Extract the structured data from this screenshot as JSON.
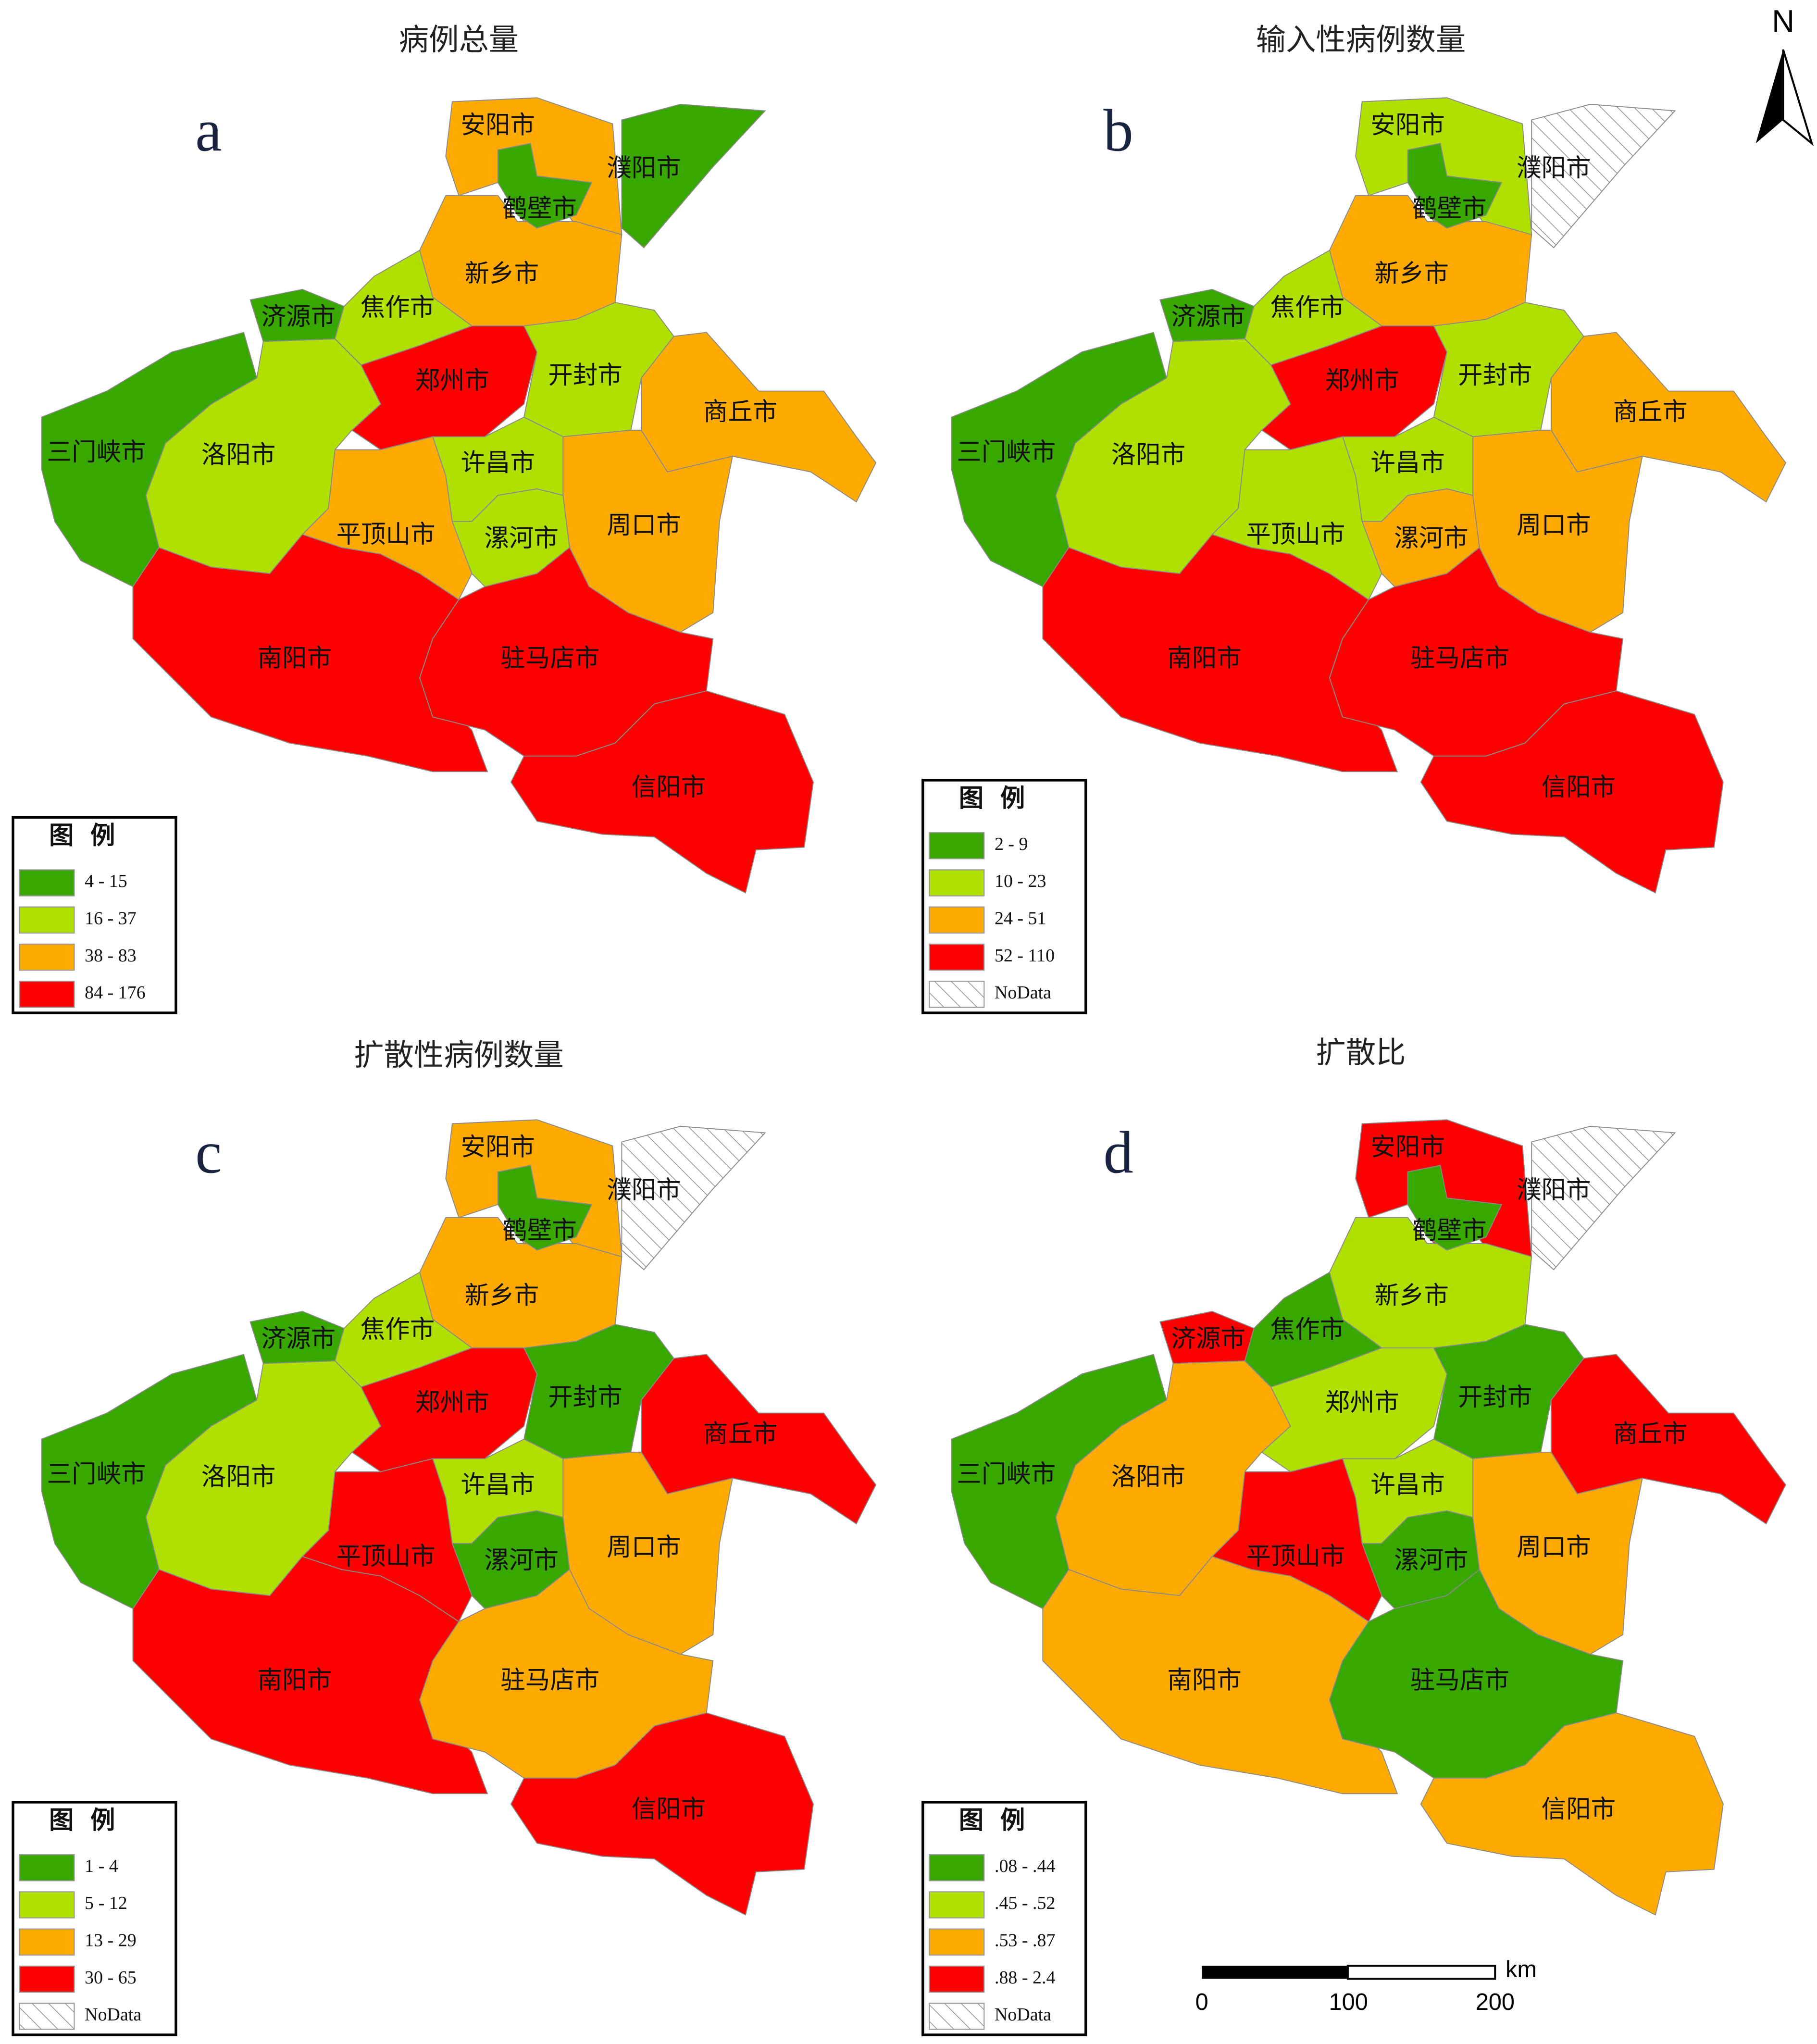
{
  "maps": [
    {
      "title": "病例总量",
      "letter": "a",
      "legend": {
        "title": "图 例",
        "items": [
          {
            "label": "4 - 15",
            "color": "#38a800"
          },
          {
            "label": "16 - 37",
            "color": "#b0e000"
          },
          {
            "label": "38 - 83",
            "color": "#ffaa00"
          },
          {
            "label": "84 - 176",
            "color": "#ff0000"
          }
        ]
      },
      "regions": [
        {
          "name": "安阳市",
          "color": "#ffaa00"
        },
        {
          "name": "濮阳市",
          "color": "#38a800"
        },
        {
          "name": "鹤壁市",
          "color": "#38a800"
        },
        {
          "name": "新乡市",
          "color": "#ffaa00"
        },
        {
          "name": "济源市",
          "color": "#38a800"
        },
        {
          "name": "焦作市",
          "color": "#b0e000"
        },
        {
          "name": "郑州市",
          "color": "#ff0000"
        },
        {
          "name": "开封市",
          "color": "#b0e000"
        },
        {
          "name": "商丘市",
          "color": "#ffaa00"
        },
        {
          "name": "三门峡市",
          "color": "#38a800"
        },
        {
          "name": "洛阳市",
          "color": "#b0e000"
        },
        {
          "name": "许昌市",
          "color": "#b0e000"
        },
        {
          "name": "平顶山市",
          "color": "#ffaa00"
        },
        {
          "name": "漯河市",
          "color": "#b0e000"
        },
        {
          "name": "周口市",
          "color": "#ffaa00"
        },
        {
          "name": "南阳市",
          "color": "#ff0000"
        },
        {
          "name": "驻马店市",
          "color": "#ff0000"
        },
        {
          "name": "信阳市",
          "color": "#ff0000"
        }
      ]
    },
    {
      "title": "输入性病例数量",
      "letter": "b",
      "legend": {
        "title": "图 例",
        "items": [
          {
            "label": "2 - 9",
            "color": "#38a800"
          },
          {
            "label": "10 - 23",
            "color": "#b0e000"
          },
          {
            "label": "24 - 51",
            "color": "#ffaa00"
          },
          {
            "label": "52 - 110",
            "color": "#ff0000"
          },
          {
            "label": "NoData",
            "color": "none"
          }
        ]
      },
      "regions": [
        {
          "name": "安阳市",
          "color": "#b0e000"
        },
        {
          "name": "濮阳市",
          "color": "none"
        },
        {
          "name": "鹤壁市",
          "color": "#38a800"
        },
        {
          "name": "新乡市",
          "color": "#ffaa00"
        },
        {
          "name": "济源市",
          "color": "#38a800"
        },
        {
          "name": "焦作市",
          "color": "#b0e000"
        },
        {
          "name": "郑州市",
          "color": "#ff0000"
        },
        {
          "name": "开封市",
          "color": "#b0e000"
        },
        {
          "name": "商丘市",
          "color": "#ffaa00"
        },
        {
          "name": "三门峡市",
          "color": "#38a800"
        },
        {
          "name": "洛阳市",
          "color": "#b0e000"
        },
        {
          "name": "许昌市",
          "color": "#b0e000"
        },
        {
          "name": "平顶山市",
          "color": "#b0e000"
        },
        {
          "name": "漯河市",
          "color": "#ffaa00"
        },
        {
          "name": "周口市",
          "color": "#ffaa00"
        },
        {
          "name": "南阳市",
          "color": "#ff0000"
        },
        {
          "name": "驻马店市",
          "color": "#ff0000"
        },
        {
          "name": "信阳市",
          "color": "#ff0000"
        }
      ]
    },
    {
      "title": "扩散性病例数量",
      "letter": "c",
      "legend": {
        "title": "图 例",
        "items": [
          {
            "label": "1 - 4",
            "color": "#38a800"
          },
          {
            "label": "5 - 12",
            "color": "#b0e000"
          },
          {
            "label": "13 - 29",
            "color": "#ffaa00"
          },
          {
            "label": "30 - 65",
            "color": "#ff0000"
          },
          {
            "label": "NoData",
            "color": "none"
          }
        ]
      },
      "regions": [
        {
          "name": "安阳市",
          "color": "#ffaa00"
        },
        {
          "name": "濮阳市",
          "color": "none"
        },
        {
          "name": "鹤壁市",
          "color": "#38a800"
        },
        {
          "name": "新乡市",
          "color": "#ffaa00"
        },
        {
          "name": "济源市",
          "color": "#38a800"
        },
        {
          "name": "焦作市",
          "color": "#b0e000"
        },
        {
          "name": "郑州市",
          "color": "#ff0000"
        },
        {
          "name": "开封市",
          "color": "#38a800"
        },
        {
          "name": "商丘市",
          "color": "#ff0000"
        },
        {
          "name": "三门峡市",
          "color": "#38a800"
        },
        {
          "name": "洛阳市",
          "color": "#b0e000"
        },
        {
          "name": "许昌市",
          "color": "#b0e000"
        },
        {
          "name": "平顶山市",
          "color": "#ff0000"
        },
        {
          "name": "漯河市",
          "color": "#38a800"
        },
        {
          "name": "周口市",
          "color": "#ffaa00"
        },
        {
          "name": "南阳市",
          "color": "#ff0000"
        },
        {
          "name": "驻马店市",
          "color": "#ffaa00"
        },
        {
          "name": "信阳市",
          "color": "#ff0000"
        }
      ]
    },
    {
      "title": "扩散比",
      "letter": "d",
      "legend": {
        "title": "图 例",
        "items": [
          {
            "label": ".08 - .44",
            "color": "#38a800"
          },
          {
            "label": ".45 - .52",
            "color": "#b0e000"
          },
          {
            "label": ".53 - .87",
            "color": "#ffaa00"
          },
          {
            "label": ".88 - 2.4",
            "color": "#ff0000"
          },
          {
            "label": "NoData",
            "color": "none"
          }
        ]
      },
      "regions": [
        {
          "name": "安阳市",
          "color": "#ff0000"
        },
        {
          "name": "濮阳市",
          "color": "none"
        },
        {
          "name": "鹤壁市",
          "color": "#38a800"
        },
        {
          "name": "新乡市",
          "color": "#b0e000"
        },
        {
          "name": "济源市",
          "color": "#ff0000"
        },
        {
          "name": "焦作市",
          "color": "#38a800"
        },
        {
          "name": "郑州市",
          "color": "#b0e000"
        },
        {
          "name": "开封市",
          "color": "#38a800"
        },
        {
          "name": "商丘市",
          "color": "#ff0000"
        },
        {
          "name": "三门峡市",
          "color": "#38a800"
        },
        {
          "name": "洛阳市",
          "color": "#ffaa00"
        },
        {
          "name": "许昌市",
          "color": "#b0e000"
        },
        {
          "name": "平顶山市",
          "color": "#ff0000"
        },
        {
          "name": "漯河市",
          "color": "#38a800"
        },
        {
          "name": "周口市",
          "color": "#ffaa00"
        },
        {
          "name": "南阳市",
          "color": "#ffaa00"
        },
        {
          "name": "驻马店市",
          "color": "#38a800"
        },
        {
          "name": "信阳市",
          "color": "#ffaa00"
        }
      ]
    }
  ],
  "north": "N",
  "scale_bar": {
    "ticks": [
      "0",
      "100",
      "200"
    ],
    "unit": "km"
  }
}
